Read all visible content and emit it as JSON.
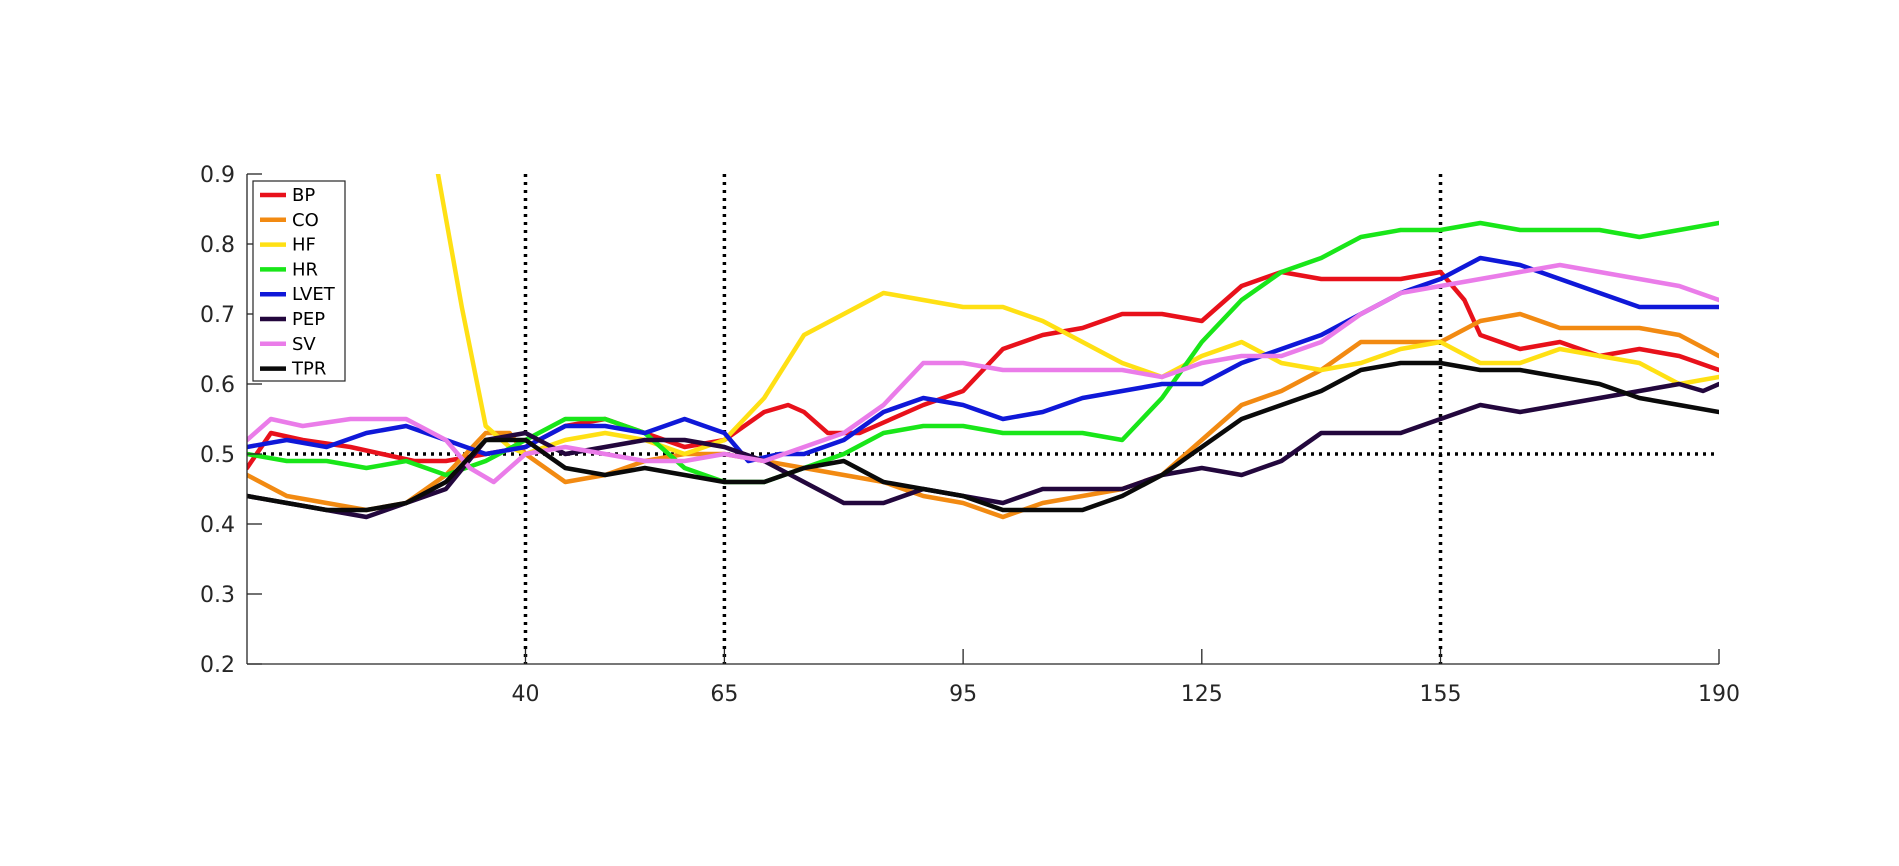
{
  "chart_data": {
    "type": "line",
    "xlim": [
      5,
      190
    ],
    "ylim": [
      0.2,
      0.9
    ],
    "xticks": [
      40,
      65,
      95,
      125,
      155,
      190
    ],
    "yticks": [
      0.2,
      0.3,
      0.4,
      0.5,
      0.6,
      0.7,
      0.8,
      0.9
    ],
    "reference_lines": {
      "horizontal": [
        0.5
      ],
      "vertical": [
        40,
        65,
        155
      ]
    },
    "legend_position": "top-left",
    "grid": false,
    "series": [
      {
        "name": "BP",
        "color": "#e8111b",
        "points": [
          [
            5,
            0.48
          ],
          [
            8,
            0.53
          ],
          [
            12,
            0.52
          ],
          [
            18,
            0.51
          ],
          [
            22,
            0.5
          ],
          [
            26,
            0.49
          ],
          [
            30,
            0.49
          ],
          [
            35,
            0.5
          ],
          [
            40,
            0.51
          ],
          [
            45,
            0.54
          ],
          [
            50,
            0.55
          ],
          [
            55,
            0.53
          ],
          [
            60,
            0.51
          ],
          [
            65,
            0.52
          ],
          [
            70,
            0.56
          ],
          [
            73,
            0.57
          ],
          [
            75,
            0.56
          ],
          [
            78,
            0.53
          ],
          [
            82,
            0.53
          ],
          [
            90,
            0.57
          ],
          [
            95,
            0.59
          ],
          [
            100,
            0.65
          ],
          [
            105,
            0.67
          ],
          [
            110,
            0.68
          ],
          [
            115,
            0.7
          ],
          [
            120,
            0.7
          ],
          [
            125,
            0.69
          ],
          [
            130,
            0.74
          ],
          [
            135,
            0.76
          ],
          [
            140,
            0.75
          ],
          [
            145,
            0.75
          ],
          [
            150,
            0.75
          ],
          [
            155,
            0.76
          ],
          [
            158,
            0.72
          ],
          [
            160,
            0.67
          ],
          [
            165,
            0.65
          ],
          [
            170,
            0.66
          ],
          [
            175,
            0.64
          ],
          [
            180,
            0.65
          ],
          [
            185,
            0.64
          ],
          [
            190,
            0.62
          ]
        ]
      },
      {
        "name": "CO",
        "color": "#f28a12",
        "points": [
          [
            5,
            0.47
          ],
          [
            10,
            0.44
          ],
          [
            15,
            0.43
          ],
          [
            20,
            0.42
          ],
          [
            25,
            0.43
          ],
          [
            30,
            0.47
          ],
          [
            35,
            0.53
          ],
          [
            38,
            0.53
          ],
          [
            40,
            0.5
          ],
          [
            45,
            0.46
          ],
          [
            50,
            0.47
          ],
          [
            55,
            0.49
          ],
          [
            60,
            0.5
          ],
          [
            65,
            0.5
          ],
          [
            70,
            0.49
          ],
          [
            75,
            0.48
          ],
          [
            80,
            0.47
          ],
          [
            85,
            0.46
          ],
          [
            90,
            0.44
          ],
          [
            95,
            0.43
          ],
          [
            100,
            0.41
          ],
          [
            105,
            0.43
          ],
          [
            110,
            0.44
          ],
          [
            115,
            0.45
          ],
          [
            120,
            0.47
          ],
          [
            125,
            0.52
          ],
          [
            130,
            0.57
          ],
          [
            135,
            0.59
          ],
          [
            140,
            0.62
          ],
          [
            145,
            0.66
          ],
          [
            150,
            0.66
          ],
          [
            155,
            0.66
          ],
          [
            160,
            0.69
          ],
          [
            165,
            0.7
          ],
          [
            170,
            0.68
          ],
          [
            175,
            0.68
          ],
          [
            180,
            0.68
          ],
          [
            185,
            0.67
          ],
          [
            190,
            0.64
          ]
        ]
      },
      {
        "name": "HF",
        "color": "#ffe014",
        "points": [
          [
            29,
            0.9
          ],
          [
            32,
            0.71
          ],
          [
            35,
            0.54
          ],
          [
            38,
            0.51
          ],
          [
            40,
            0.5
          ],
          [
            45,
            0.52
          ],
          [
            50,
            0.53
          ],
          [
            55,
            0.52
          ],
          [
            60,
            0.5
          ],
          [
            65,
            0.52
          ],
          [
            70,
            0.58
          ],
          [
            75,
            0.67
          ],
          [
            80,
            0.7
          ],
          [
            85,
            0.73
          ],
          [
            90,
            0.72
          ],
          [
            95,
            0.71
          ],
          [
            100,
            0.71
          ],
          [
            105,
            0.69
          ],
          [
            110,
            0.66
          ],
          [
            115,
            0.63
          ],
          [
            120,
            0.61
          ],
          [
            125,
            0.64
          ],
          [
            130,
            0.66
          ],
          [
            135,
            0.63
          ],
          [
            140,
            0.62
          ],
          [
            145,
            0.63
          ],
          [
            150,
            0.65
          ],
          [
            155,
            0.66
          ],
          [
            160,
            0.63
          ],
          [
            165,
            0.63
          ],
          [
            170,
            0.65
          ],
          [
            175,
            0.64
          ],
          [
            180,
            0.63
          ],
          [
            185,
            0.6
          ],
          [
            190,
            0.61
          ]
        ]
      },
      {
        "name": "HR",
        "color": "#19e619",
        "points": [
          [
            5,
            0.5
          ],
          [
            10,
            0.49
          ],
          [
            15,
            0.49
          ],
          [
            20,
            0.48
          ],
          [
            25,
            0.49
          ],
          [
            30,
            0.47
          ],
          [
            35,
            0.49
          ],
          [
            40,
            0.52
          ],
          [
            45,
            0.55
          ],
          [
            50,
            0.55
          ],
          [
            55,
            0.53
          ],
          [
            60,
            0.48
          ],
          [
            65,
            0.46
          ],
          [
            70,
            0.46
          ],
          [
            75,
            0.48
          ],
          [
            80,
            0.5
          ],
          [
            85,
            0.53
          ],
          [
            90,
            0.54
          ],
          [
            95,
            0.54
          ],
          [
            100,
            0.53
          ],
          [
            105,
            0.53
          ],
          [
            110,
            0.53
          ],
          [
            115,
            0.52
          ],
          [
            120,
            0.58
          ],
          [
            125,
            0.66
          ],
          [
            130,
            0.72
          ],
          [
            135,
            0.76
          ],
          [
            140,
            0.78
          ],
          [
            145,
            0.81
          ],
          [
            150,
            0.82
          ],
          [
            155,
            0.82
          ],
          [
            160,
            0.83
          ],
          [
            165,
            0.82
          ],
          [
            170,
            0.82
          ],
          [
            175,
            0.82
          ],
          [
            180,
            0.81
          ],
          [
            185,
            0.82
          ],
          [
            190,
            0.83
          ]
        ]
      },
      {
        "name": "LVET",
        "color": "#0f18d8",
        "points": [
          [
            5,
            0.51
          ],
          [
            10,
            0.52
          ],
          [
            15,
            0.51
          ],
          [
            20,
            0.53
          ],
          [
            25,
            0.54
          ],
          [
            30,
            0.52
          ],
          [
            35,
            0.5
          ],
          [
            40,
            0.51
          ],
          [
            45,
            0.54
          ],
          [
            50,
            0.54
          ],
          [
            55,
            0.53
          ],
          [
            60,
            0.55
          ],
          [
            65,
            0.53
          ],
          [
            68,
            0.49
          ],
          [
            72,
            0.5
          ],
          [
            75,
            0.5
          ],
          [
            80,
            0.52
          ],
          [
            85,
            0.56
          ],
          [
            90,
            0.58
          ],
          [
            95,
            0.57
          ],
          [
            100,
            0.55
          ],
          [
            105,
            0.56
          ],
          [
            110,
            0.58
          ],
          [
            115,
            0.59
          ],
          [
            120,
            0.6
          ],
          [
            125,
            0.6
          ],
          [
            130,
            0.63
          ],
          [
            135,
            0.65
          ],
          [
            140,
            0.67
          ],
          [
            145,
            0.7
          ],
          [
            150,
            0.73
          ],
          [
            155,
            0.75
          ],
          [
            160,
            0.78
          ],
          [
            165,
            0.77
          ],
          [
            170,
            0.75
          ],
          [
            175,
            0.73
          ],
          [
            180,
            0.71
          ],
          [
            185,
            0.71
          ],
          [
            190,
            0.71
          ]
        ]
      },
      {
        "name": "PEP",
        "color": "#23073d",
        "points": [
          [
            5,
            0.44
          ],
          [
            10,
            0.43
          ],
          [
            15,
            0.42
          ],
          [
            20,
            0.41
          ],
          [
            25,
            0.43
          ],
          [
            30,
            0.45
          ],
          [
            35,
            0.52
          ],
          [
            40,
            0.53
          ],
          [
            45,
            0.5
          ],
          [
            50,
            0.51
          ],
          [
            55,
            0.52
          ],
          [
            60,
            0.52
          ],
          [
            65,
            0.51
          ],
          [
            70,
            0.49
          ],
          [
            75,
            0.46
          ],
          [
            80,
            0.43
          ],
          [
            85,
            0.43
          ],
          [
            90,
            0.45
          ],
          [
            95,
            0.44
          ],
          [
            100,
            0.43
          ],
          [
            105,
            0.45
          ],
          [
            110,
            0.45
          ],
          [
            115,
            0.45
          ],
          [
            120,
            0.47
          ],
          [
            125,
            0.48
          ],
          [
            130,
            0.47
          ],
          [
            135,
            0.49
          ],
          [
            140,
            0.53
          ],
          [
            145,
            0.53
          ],
          [
            150,
            0.53
          ],
          [
            155,
            0.55
          ],
          [
            160,
            0.57
          ],
          [
            165,
            0.56
          ],
          [
            170,
            0.57
          ],
          [
            175,
            0.58
          ],
          [
            180,
            0.59
          ],
          [
            185,
            0.6
          ],
          [
            188,
            0.59
          ],
          [
            190,
            0.6
          ]
        ]
      },
      {
        "name": "SV",
        "color": "#ea7ce9",
        "points": [
          [
            5,
            0.52
          ],
          [
            8,
            0.55
          ],
          [
            12,
            0.54
          ],
          [
            18,
            0.55
          ],
          [
            25,
            0.55
          ],
          [
            30,
            0.52
          ],
          [
            33,
            0.48
          ],
          [
            36,
            0.46
          ],
          [
            40,
            0.5
          ],
          [
            45,
            0.51
          ],
          [
            50,
            0.5
          ],
          [
            55,
            0.49
          ],
          [
            60,
            0.49
          ],
          [
            65,
            0.5
          ],
          [
            70,
            0.49
          ],
          [
            75,
            0.51
          ],
          [
            80,
            0.53
          ],
          [
            85,
            0.57
          ],
          [
            90,
            0.63
          ],
          [
            95,
            0.63
          ],
          [
            100,
            0.62
          ],
          [
            105,
            0.62
          ],
          [
            110,
            0.62
          ],
          [
            115,
            0.62
          ],
          [
            120,
            0.61
          ],
          [
            125,
            0.63
          ],
          [
            130,
            0.64
          ],
          [
            135,
            0.64
          ],
          [
            140,
            0.66
          ],
          [
            145,
            0.7
          ],
          [
            150,
            0.73
          ],
          [
            155,
            0.74
          ],
          [
            160,
            0.75
          ],
          [
            165,
            0.76
          ],
          [
            170,
            0.77
          ],
          [
            175,
            0.76
          ],
          [
            180,
            0.75
          ],
          [
            185,
            0.74
          ],
          [
            190,
            0.72
          ]
        ]
      },
      {
        "name": "TPR",
        "color": "#0a0a0a",
        "points": [
          [
            5,
            0.44
          ],
          [
            10,
            0.43
          ],
          [
            15,
            0.42
          ],
          [
            20,
            0.42
          ],
          [
            25,
            0.43
          ],
          [
            30,
            0.46
          ],
          [
            35,
            0.52
          ],
          [
            40,
            0.52
          ],
          [
            45,
            0.48
          ],
          [
            50,
            0.47
          ],
          [
            55,
            0.48
          ],
          [
            60,
            0.47
          ],
          [
            65,
            0.46
          ],
          [
            70,
            0.46
          ],
          [
            75,
            0.48
          ],
          [
            80,
            0.49
          ],
          [
            85,
            0.46
          ],
          [
            90,
            0.45
          ],
          [
            95,
            0.44
          ],
          [
            100,
            0.42
          ],
          [
            105,
            0.42
          ],
          [
            110,
            0.42
          ],
          [
            115,
            0.44
          ],
          [
            120,
            0.47
          ],
          [
            125,
            0.51
          ],
          [
            130,
            0.55
          ],
          [
            135,
            0.57
          ],
          [
            140,
            0.59
          ],
          [
            145,
            0.62
          ],
          [
            150,
            0.63
          ],
          [
            155,
            0.63
          ],
          [
            160,
            0.62
          ],
          [
            165,
            0.62
          ],
          [
            170,
            0.61
          ],
          [
            175,
            0.6
          ],
          [
            180,
            0.58
          ],
          [
            185,
            0.57
          ],
          [
            190,
            0.56
          ]
        ]
      }
    ]
  }
}
